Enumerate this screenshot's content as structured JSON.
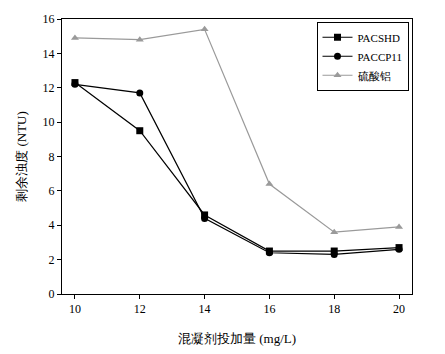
{
  "chart_data": {
    "type": "line",
    "x_label": "混凝剂投加量 (mg/L)",
    "y_label": "剩余浊度 (NTU)",
    "x": [
      10,
      12,
      14,
      16,
      18,
      20
    ],
    "series": [
      {
        "name": "PACSHD",
        "color": "#000000",
        "marker": "square",
        "line_style": "solid",
        "values": [
          12.3,
          9.5,
          4.6,
          2.5,
          2.5,
          2.7
        ]
      },
      {
        "name": "PACCP11",
        "color": "#000000",
        "marker": "circle",
        "line_style": "solid",
        "values": [
          12.2,
          11.7,
          4.4,
          2.4,
          2.3,
          2.6
        ]
      },
      {
        "name": "硫酸铝",
        "color": "#9a9a9a",
        "marker": "triangle-up",
        "line_style": "solid",
        "values": [
          14.9,
          14.8,
          15.4,
          6.4,
          3.6,
          3.9
        ]
      }
    ],
    "xlim": [
      9.6,
      20.4
    ],
    "xticks": [
      10,
      12,
      14,
      16,
      18,
      20
    ],
    "ylim": [
      0,
      16
    ],
    "yticks": [
      0,
      2,
      4,
      6,
      8,
      10,
      12,
      14,
      16
    ],
    "grid": false,
    "legend": "upper right"
  }
}
